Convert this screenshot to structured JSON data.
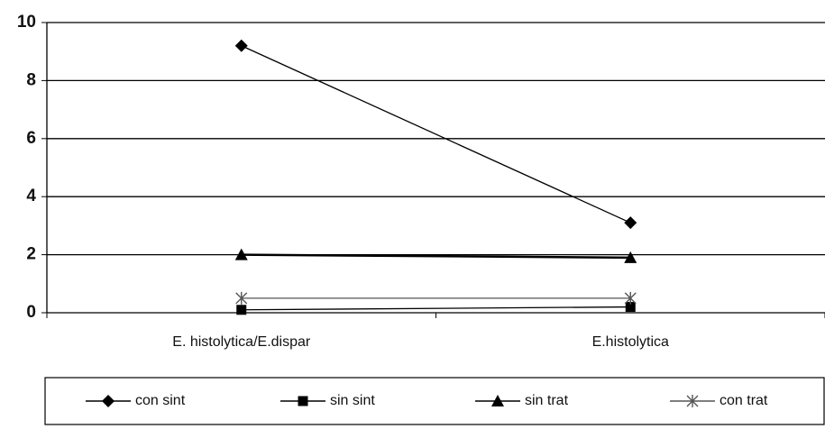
{
  "chart_data": {
    "type": "line",
    "categories": [
      "E. histolytica/E.dispar",
      "E.histolytica"
    ],
    "series": [
      {
        "name": "con sint",
        "color": "#000000",
        "marker": "diamond",
        "values": [
          9.2,
          3.1
        ]
      },
      {
        "name": "sin sint",
        "color": "#000000",
        "marker": "square",
        "values": [
          0.1,
          0.2
        ]
      },
      {
        "name": "sin trat",
        "color": "#000000",
        "marker": "triangle",
        "values": [
          2,
          1.9
        ]
      },
      {
        "name": "con trat",
        "color": "#555555",
        "marker": "star",
        "values": [
          0.5,
          0.5
        ]
      }
    ],
    "ylim": [
      0,
      10
    ],
    "yticks": [
      0,
      2,
      4,
      6,
      8,
      10
    ],
    "grid": true,
    "legend": "bottom"
  }
}
